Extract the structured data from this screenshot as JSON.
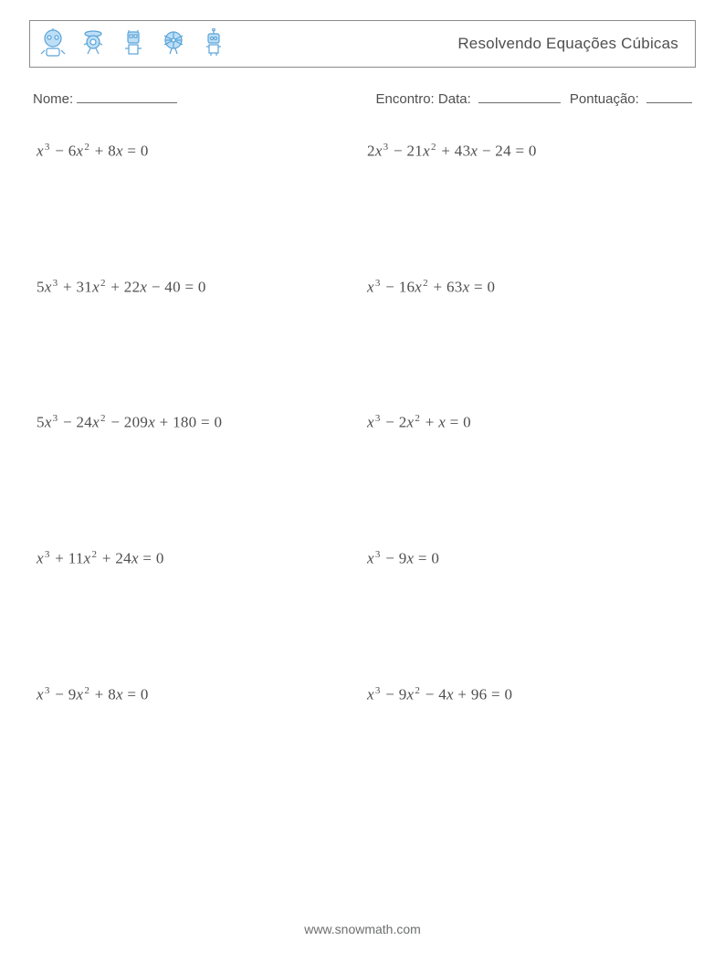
{
  "colors": {
    "text": "#4f4f50",
    "border": "#8a8a8a",
    "icon_stroke": "#5aa3d8",
    "icon_fill": "#bcdff7",
    "background": "#ffffff"
  },
  "header": {
    "title": "Resolvendo Equações Cúbicas",
    "icons": [
      "robot-1-icon",
      "robot-2-icon",
      "robot-3-icon",
      "robot-4-icon",
      "robot-5-icon"
    ]
  },
  "meta": {
    "name_label": "Nome:",
    "encounter_label": "Encontro:",
    "date_label": "Data:",
    "score_label": "Pontuação:"
  },
  "problems": {
    "layout": {
      "columns": 2,
      "rows": 5
    },
    "font_size_pt": 13,
    "items": [
      {
        "equation_text": "x³ − 6x² + 8x = 0",
        "terms": [
          {
            "coef": 1,
            "var": "x",
            "pow": 3
          },
          {
            "op": "−",
            "coef": 6,
            "var": "x",
            "pow": 2
          },
          {
            "op": "+",
            "coef": 8,
            "var": "x",
            "pow": 1
          }
        ],
        "rhs": 0
      },
      {
        "equation_text": "2x³ − 21x² + 43x − 24 = 0",
        "terms": [
          {
            "coef": 2,
            "var": "x",
            "pow": 3
          },
          {
            "op": "−",
            "coef": 21,
            "var": "x",
            "pow": 2
          },
          {
            "op": "+",
            "coef": 43,
            "var": "x",
            "pow": 1
          },
          {
            "op": "−",
            "coef": 24
          }
        ],
        "rhs": 0
      },
      {
        "equation_text": "5x³ + 31x² + 22x − 40 = 0",
        "terms": [
          {
            "coef": 5,
            "var": "x",
            "pow": 3
          },
          {
            "op": "+",
            "coef": 31,
            "var": "x",
            "pow": 2
          },
          {
            "op": "+",
            "coef": 22,
            "var": "x",
            "pow": 1
          },
          {
            "op": "−",
            "coef": 40
          }
        ],
        "rhs": 0
      },
      {
        "equation_text": "x³ − 16x² + 63x = 0",
        "terms": [
          {
            "coef": 1,
            "var": "x",
            "pow": 3
          },
          {
            "op": "−",
            "coef": 16,
            "var": "x",
            "pow": 2
          },
          {
            "op": "+",
            "coef": 63,
            "var": "x",
            "pow": 1
          }
        ],
        "rhs": 0
      },
      {
        "equation_text": "5x³ − 24x² − 209x + 180 = 0",
        "terms": [
          {
            "coef": 5,
            "var": "x",
            "pow": 3
          },
          {
            "op": "−",
            "coef": 24,
            "var": "x",
            "pow": 2
          },
          {
            "op": "−",
            "coef": 209,
            "var": "x",
            "pow": 1
          },
          {
            "op": "+",
            "coef": 180
          }
        ],
        "rhs": 0
      },
      {
        "equation_text": "x³ − 2x² + x = 0",
        "terms": [
          {
            "coef": 1,
            "var": "x",
            "pow": 3
          },
          {
            "op": "−",
            "coef": 2,
            "var": "x",
            "pow": 2
          },
          {
            "op": "+",
            "coef": 1,
            "var": "x",
            "pow": 1
          }
        ],
        "rhs": 0
      },
      {
        "equation_text": "x³ + 11x² + 24x = 0",
        "terms": [
          {
            "coef": 1,
            "var": "x",
            "pow": 3
          },
          {
            "op": "+",
            "coef": 11,
            "var": "x",
            "pow": 2
          },
          {
            "op": "+",
            "coef": 24,
            "var": "x",
            "pow": 1
          }
        ],
        "rhs": 0
      },
      {
        "equation_text": "x³ − 9x = 0",
        "terms": [
          {
            "coef": 1,
            "var": "x",
            "pow": 3
          },
          {
            "op": "−",
            "coef": 9,
            "var": "x",
            "pow": 1
          }
        ],
        "rhs": 0
      },
      {
        "equation_text": "x³ − 9x² + 8x = 0",
        "terms": [
          {
            "coef": 1,
            "var": "x",
            "pow": 3
          },
          {
            "op": "−",
            "coef": 9,
            "var": "x",
            "pow": 2
          },
          {
            "op": "+",
            "coef": 8,
            "var": "x",
            "pow": 1
          }
        ],
        "rhs": 0
      },
      {
        "equation_text": "x³ − 9x² − 4x + 96 = 0",
        "terms": [
          {
            "coef": 1,
            "var": "x",
            "pow": 3
          },
          {
            "op": "−",
            "coef": 9,
            "var": "x",
            "pow": 2
          },
          {
            "op": "−",
            "coef": 4,
            "var": "x",
            "pow": 1
          },
          {
            "op": "+",
            "coef": 96
          }
        ],
        "rhs": 0
      }
    ]
  },
  "footer": {
    "text": "www.snowmath.com"
  }
}
